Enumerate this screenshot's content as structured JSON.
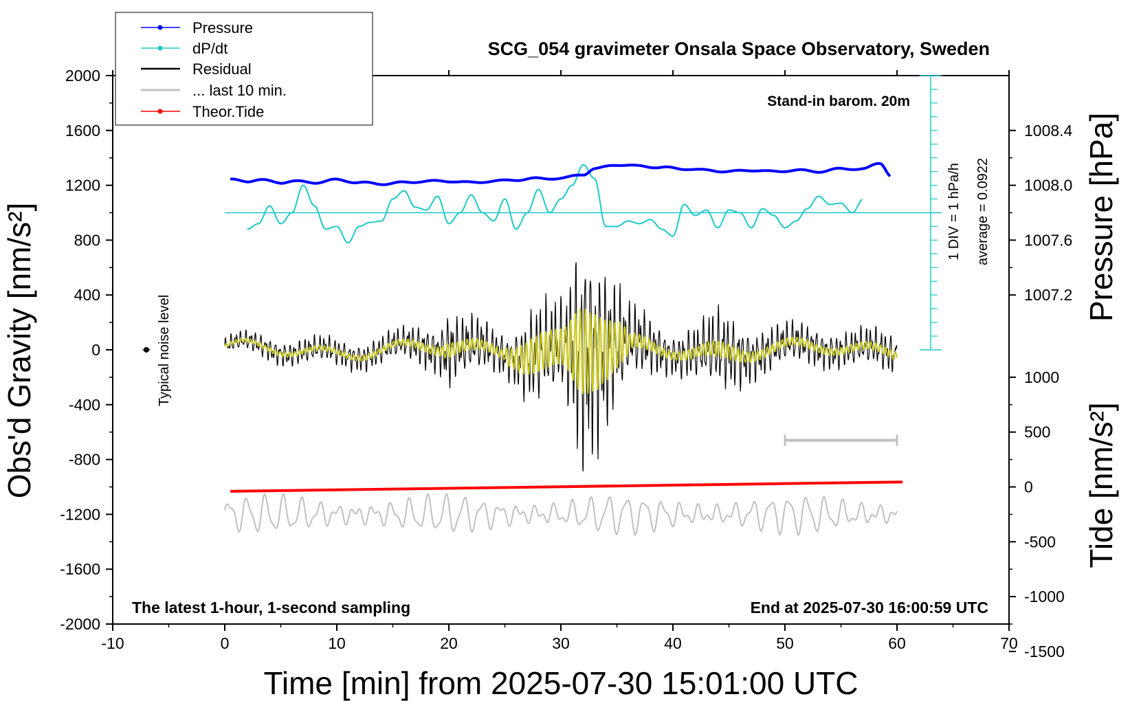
{
  "chart_data": {
    "type": "line",
    "title": "SCG_054 gravimeter Onsala Space Observatory, Sweden",
    "xlabel": "Time [min] from 2025-07-30 15:01:00 UTC",
    "ylabel_left": "Obs'd Gravity [nm/s²]",
    "ylabel_right_top": "Pressure [hPa]",
    "ylabel_right_bottom": "Tide [nm/s²]",
    "xlim": [
      -10,
      70
    ],
    "ylim": [
      -2000,
      2000
    ],
    "xticks": [
      -10,
      0,
      10,
      20,
      30,
      40,
      50,
      60,
      70
    ],
    "yticks": [
      -2000,
      -1600,
      -1200,
      -800,
      -400,
      0,
      400,
      800,
      1200,
      1600,
      2000
    ],
    "pressure_ticks": [
      "1008.4",
      "1008.0",
      "1007.6",
      "1007.2"
    ],
    "tide_ticks": [
      "1000",
      "500",
      "0",
      "-500",
      "-1000",
      "-1500"
    ],
    "legend": {
      "position": "top-left",
      "entries": [
        "Pressure",
        "dP/dt",
        "Residual",
        "... last 10 min.",
        "Theor.Tide"
      ]
    },
    "annotations": {
      "barometer": "Stand-in barom. 20m",
      "scale": "1 DIV = 1 hPa/h",
      "average": "average = 0.0922",
      "noise": "Typical noise level",
      "sampling": "The latest 1-hour, 1-second sampling",
      "end": "End at 2025-07-30 16:00:59 UTC"
    },
    "series": [
      {
        "name": "Pressure",
        "color": "#0000ff",
        "units": "hPa",
        "x": [
          0.5,
          2,
          3,
          5,
          6,
          8,
          10,
          12,
          14,
          16,
          18,
          20,
          22,
          24,
          26,
          28,
          30,
          32,
          33,
          35,
          37,
          39,
          41,
          43,
          45,
          47,
          49,
          51,
          53,
          55,
          57,
          58.5,
          59.5
        ],
        "y": [
          1008.04,
          1008.03,
          1008.04,
          1008.02,
          1008.03,
          1008.02,
          1008.04,
          1008.02,
          1008.01,
          1008.02,
          1008.03,
          1008.03,
          1008.02,
          1008.03,
          1008.04,
          1008.05,
          1008.05,
          1008.08,
          1008.12,
          1008.15,
          1008.14,
          1008.13,
          1008.12,
          1008.11,
          1008.1,
          1008.11,
          1008.1,
          1008.11,
          1008.1,
          1008.12,
          1008.12,
          1008.16,
          1008.07
        ]
      },
      {
        "name": "dP/dt",
        "color": "#1ec8c8",
        "units": "nm/s² (plot scale)",
        "x": [
          2,
          3,
          4,
          5,
          6,
          7,
          8,
          9,
          10,
          11,
          12,
          13,
          14,
          15,
          16,
          17,
          18,
          19,
          20,
          21,
          22,
          23,
          24,
          25,
          26,
          27,
          28,
          29,
          30,
          31,
          32,
          33,
          34,
          35,
          36,
          37,
          38,
          39,
          40,
          41,
          42,
          43,
          44,
          45,
          46,
          47,
          48,
          49,
          50,
          51,
          52,
          53,
          54,
          55,
          56,
          57
        ],
        "y": [
          880,
          920,
          1050,
          920,
          1000,
          1200,
          1050,
          880,
          900,
          780,
          900,
          930,
          940,
          1100,
          1160,
          1040,
          1020,
          1120,
          920,
          1000,
          1130,
          1000,
          940,
          1100,
          880,
          1000,
          1170,
          1000,
          1100,
          1200,
          1350,
          1250,
          900,
          900,
          940,
          920,
          950,
          880,
          830,
          1060,
          980,
          1020,
          890,
          1020,
          1000,
          890,
          1030,
          980,
          890,
          940,
          1030,
          1120,
          1060,
          1070,
          1000,
          1100
        ]
      },
      {
        "name": "Residual (envelope)",
        "color": "#000000",
        "units": "nm/s²",
        "x": [
          0,
          5,
          10,
          15,
          19,
          20,
          21,
          25,
          28,
          30,
          32,
          33,
          34,
          35,
          36,
          40,
          42,
          44,
          48,
          50,
          55,
          60
        ],
        "y": [
          60,
          80,
          90,
          100,
          150,
          260,
          200,
          150,
          340,
          320,
          780,
          700,
          560,
          420,
          250,
          140,
          180,
          270,
          160,
          140,
          120,
          140
        ]
      },
      {
        "name": "... last 10 min.",
        "color": "#c0c0c0",
        "units": "nm/s²",
        "x": [
          0,
          60
        ],
        "y": [
          -1200,
          -1200
        ]
      },
      {
        "name": "Theor.Tide",
        "color": "#ff0000",
        "units": "nm/s²",
        "x": [
          0.5,
          60.5
        ],
        "y": [
          -40,
          45
        ]
      }
    ],
    "noise_marker": {
      "x": -7,
      "y": 0
    },
    "scale_bar": {
      "x_start": 50,
      "x_end": 60
    }
  }
}
